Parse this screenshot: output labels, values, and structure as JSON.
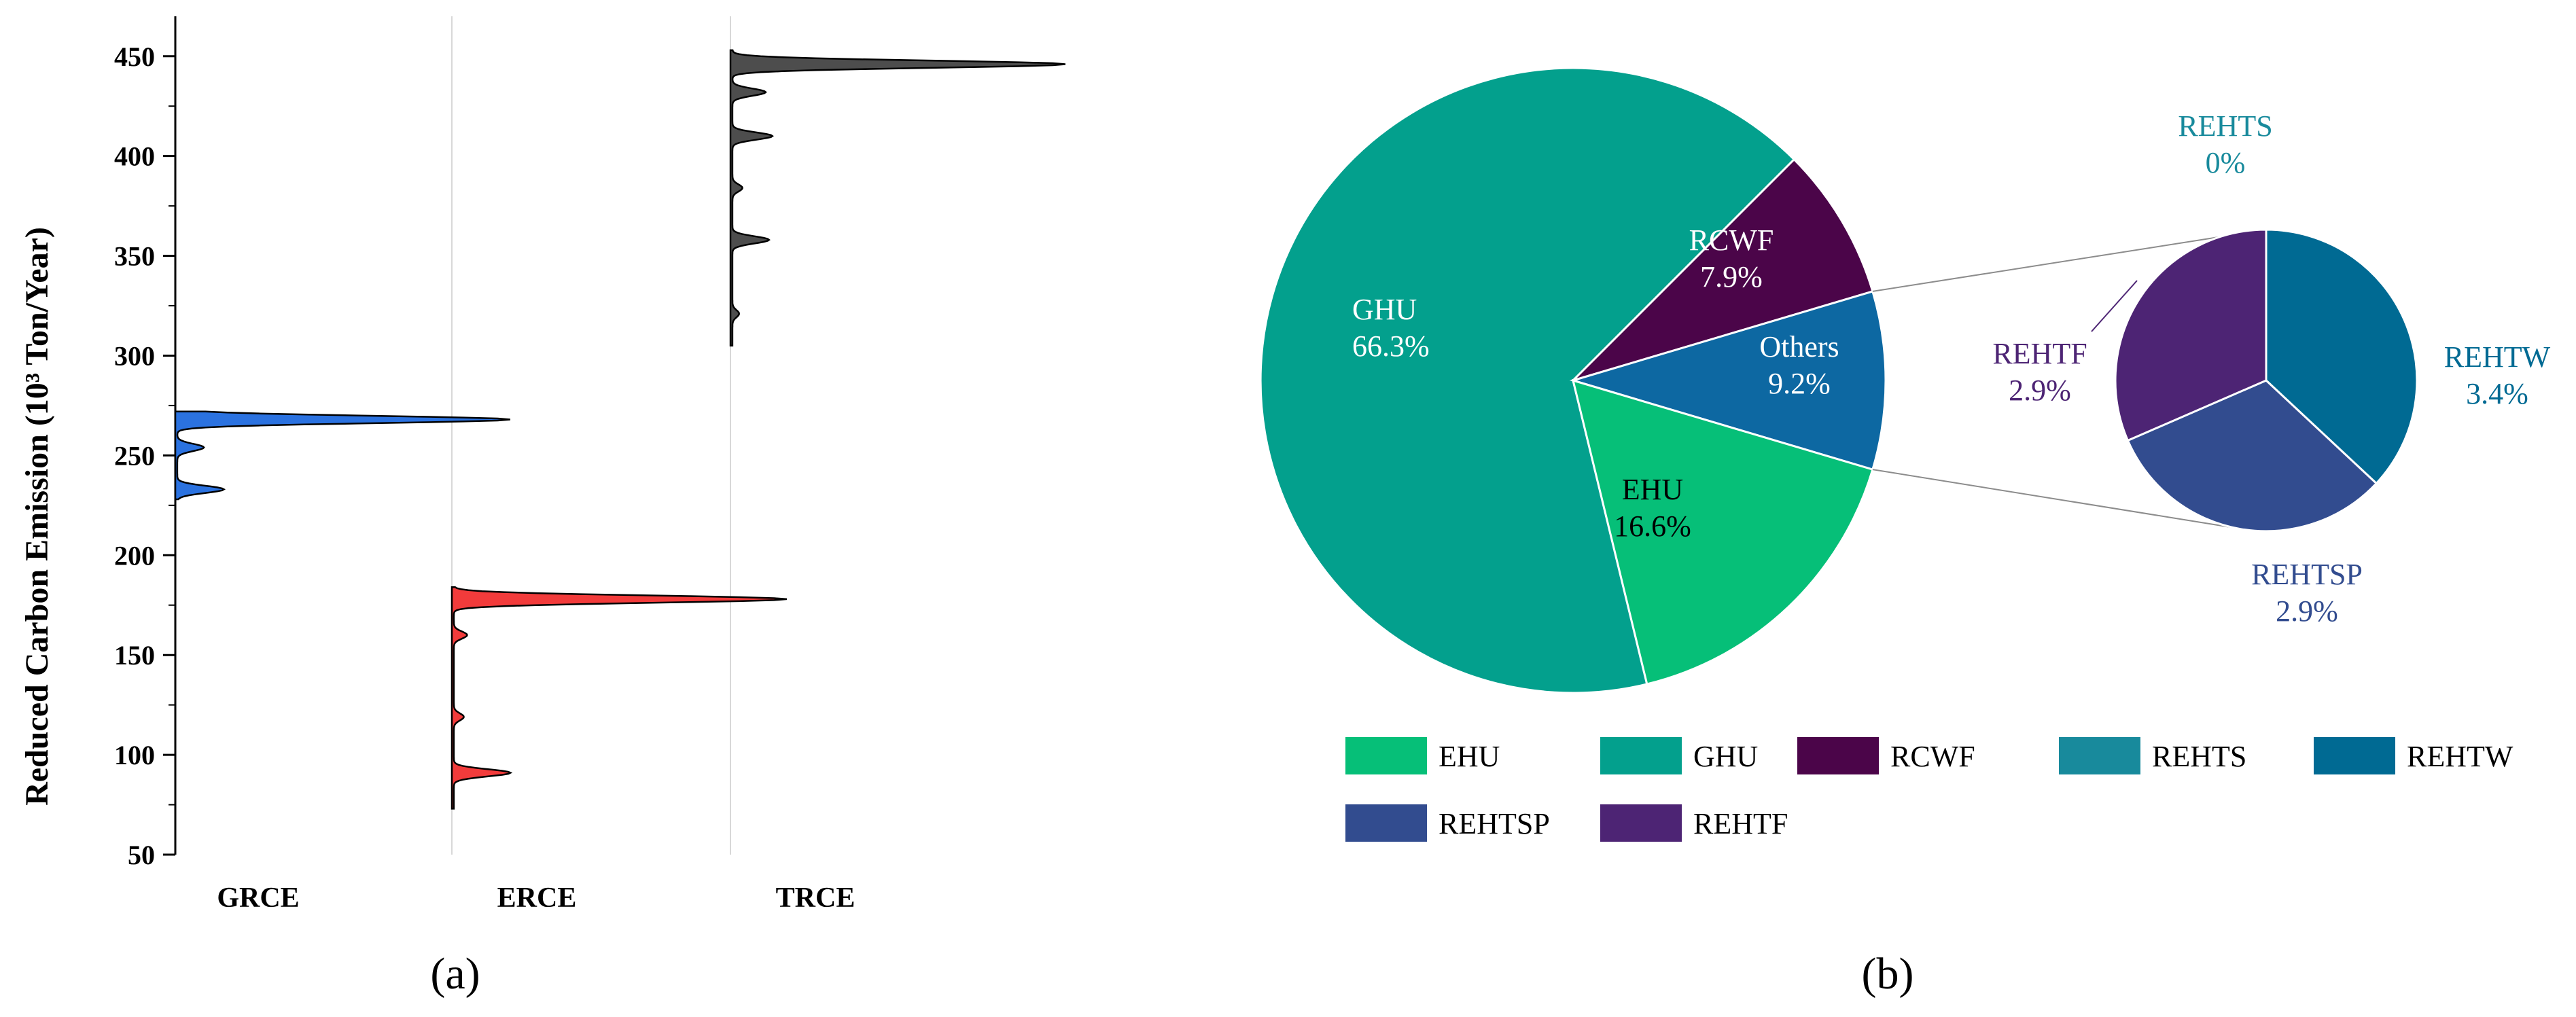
{
  "chart_data": [
    {
      "type": "violin",
      "panel_label": "(a)",
      "ylabel": "Reduced Carbon Emission (10³ Ton/Year)",
      "ylim": [
        50,
        470
      ],
      "yticks": [
        "50",
        "100",
        "150",
        "200",
        "250",
        "300",
        "350",
        "400",
        "450"
      ],
      "categories": [
        "GRCE",
        "ERCE",
        "TRCE"
      ],
      "series": [
        {
          "category": "GRCE",
          "color": "#2b72e0",
          "range": [
            228,
            272
          ],
          "peaks": [
            {
              "y": 233,
              "density": 0.14
            },
            {
              "y": 254,
              "density": 0.08
            },
            {
              "y": 268,
              "density": 1.0
            }
          ]
        },
        {
          "category": "ERCE",
          "color": "#f23b3b",
          "range": [
            73,
            184
          ],
          "peaks": [
            {
              "y": 91,
              "density": 0.17
            },
            {
              "y": 119,
              "density": 0.03
            },
            {
              "y": 160,
              "density": 0.04
            },
            {
              "y": 178,
              "density": 1.0
            }
          ]
        },
        {
          "category": "TRCE",
          "color": "#4d4d4d",
          "range": [
            305,
            453
          ],
          "peaks": [
            {
              "y": 321,
              "density": 0.02
            },
            {
              "y": 358,
              "density": 0.11
            },
            {
              "y": 384,
              "density": 0.03
            },
            {
              "y": 410,
              "density": 0.12
            },
            {
              "y": 432,
              "density": 0.1
            },
            {
              "y": 446,
              "density": 1.0
            }
          ]
        }
      ]
    },
    {
      "type": "pie",
      "panel_label": "(b)",
      "slices": [
        {
          "name": "GHU",
          "label": "GHU",
          "value": 66.3,
          "value_label": "66.3%",
          "color": "#03a08d",
          "text_color": "#ffffff"
        },
        {
          "name": "RCWF",
          "label": "RCWF",
          "value": 7.9,
          "value_label": "7.9%",
          "color": "#4b0549",
          "text_color": "#ffffff"
        },
        {
          "name": "Others",
          "label": "Others",
          "value": 9.2,
          "value_label": "9.2%",
          "color": "#0d68a2",
          "text_color": "#ffffff"
        },
        {
          "name": "EHU",
          "label": "EHU",
          "value": 16.6,
          "value_label": "16.6%",
          "color": "#06bf78",
          "text_color": "#000000"
        }
      ],
      "sub_pie": [
        {
          "name": "REHTS",
          "label": "REHTS",
          "value": 0,
          "value_label": "0%",
          "color": "#188a9c"
        },
        {
          "name": "REHTW",
          "label": "REHTW",
          "value": 3.4,
          "value_label": "3.4%",
          "color": "#006a93"
        },
        {
          "name": "REHTSP",
          "label": "REHTSP",
          "value": 2.9,
          "value_label": "2.9%",
          "color": "#324c8f"
        },
        {
          "name": "REHTF",
          "label": "REHTF",
          "value": 2.9,
          "value_label": "2.9%",
          "color": "#4d2474"
        }
      ],
      "legend": [
        {
          "label": "EHU",
          "color": "#06bf78"
        },
        {
          "label": "GHU",
          "color": "#03a08d"
        },
        {
          "label": "RCWF",
          "color": "#4b0549"
        },
        {
          "label": "REHTS",
          "color": "#188a9c"
        },
        {
          "label": "REHTW",
          "color": "#006a93"
        },
        {
          "label": "REHTSP",
          "color": "#324c8f"
        },
        {
          "label": "REHTF",
          "color": "#4d2474"
        }
      ]
    }
  ]
}
